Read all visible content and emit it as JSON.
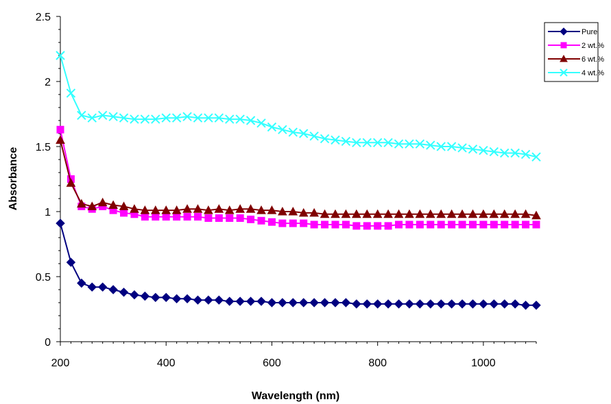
{
  "chart_data": {
    "type": "line",
    "title": "",
    "xlabel": "Wavelength (nm)",
    "ylabel": "Absorbance",
    "xlim": [
      200,
      1100
    ],
    "ylim": [
      0,
      2.5
    ],
    "x_ticks": [
      200,
      400,
      600,
      800,
      1000
    ],
    "y_ticks": [
      0,
      0.5,
      1,
      1.5,
      2,
      2.5
    ],
    "y_tick_labels": [
      "0",
      "0.5",
      "1",
      "1.5",
      "2",
      "2.5"
    ],
    "grid": false,
    "legend_position": "top-right",
    "x": [
      200,
      220,
      240,
      260,
      280,
      300,
      320,
      340,
      360,
      380,
      400,
      420,
      440,
      460,
      480,
      500,
      520,
      540,
      560,
      580,
      600,
      620,
      640,
      660,
      680,
      700,
      720,
      740,
      760,
      780,
      800,
      820,
      840,
      860,
      880,
      900,
      920,
      940,
      960,
      980,
      1000,
      1020,
      1040,
      1060,
      1080,
      1100
    ],
    "series": [
      {
        "name": "Pure",
        "color": "#000080",
        "marker": "diamond",
        "values": [
          0.91,
          0.61,
          0.45,
          0.42,
          0.42,
          0.4,
          0.38,
          0.36,
          0.35,
          0.34,
          0.34,
          0.33,
          0.33,
          0.32,
          0.32,
          0.32,
          0.31,
          0.31,
          0.31,
          0.31,
          0.3,
          0.3,
          0.3,
          0.3,
          0.3,
          0.3,
          0.3,
          0.3,
          0.29,
          0.29,
          0.29,
          0.29,
          0.29,
          0.29,
          0.29,
          0.29,
          0.29,
          0.29,
          0.29,
          0.29,
          0.29,
          0.29,
          0.29,
          0.29,
          0.28,
          0.28
        ]
      },
      {
        "name": "2 wt.%",
        "color": "#ff00ff",
        "marker": "square",
        "values": [
          1.63,
          1.25,
          1.04,
          1.02,
          1.04,
          1.01,
          0.99,
          0.98,
          0.96,
          0.96,
          0.96,
          0.96,
          0.96,
          0.96,
          0.95,
          0.95,
          0.95,
          0.95,
          0.94,
          0.93,
          0.92,
          0.91,
          0.91,
          0.91,
          0.9,
          0.9,
          0.9,
          0.9,
          0.89,
          0.89,
          0.89,
          0.89,
          0.9,
          0.9,
          0.9,
          0.9,
          0.9,
          0.9,
          0.9,
          0.9,
          0.9,
          0.9,
          0.9,
          0.9,
          0.9,
          0.9
        ]
      },
      {
        "name": "6 wt.%",
        "color": "#800000",
        "marker": "triangle",
        "values": [
          1.55,
          1.22,
          1.06,
          1.04,
          1.07,
          1.05,
          1.04,
          1.02,
          1.01,
          1.01,
          1.01,
          1.01,
          1.02,
          1.02,
          1.01,
          1.02,
          1.01,
          1.02,
          1.02,
          1.01,
          1.01,
          1.0,
          1.0,
          0.99,
          0.99,
          0.98,
          0.98,
          0.98,
          0.98,
          0.98,
          0.98,
          0.98,
          0.98,
          0.98,
          0.98,
          0.98,
          0.98,
          0.98,
          0.98,
          0.98,
          0.98,
          0.98,
          0.98,
          0.98,
          0.98,
          0.97
        ]
      },
      {
        "name": "4 wt.%",
        "color": "#33ffff",
        "marker": "x",
        "values": [
          2.2,
          1.91,
          1.74,
          1.72,
          1.74,
          1.73,
          1.72,
          1.71,
          1.71,
          1.71,
          1.72,
          1.72,
          1.73,
          1.72,
          1.72,
          1.72,
          1.71,
          1.71,
          1.7,
          1.68,
          1.65,
          1.63,
          1.61,
          1.6,
          1.58,
          1.56,
          1.55,
          1.54,
          1.53,
          1.53,
          1.53,
          1.53,
          1.52,
          1.52,
          1.52,
          1.51,
          1.5,
          1.5,
          1.49,
          1.48,
          1.47,
          1.46,
          1.45,
          1.45,
          1.44,
          1.42
        ]
      }
    ]
  }
}
